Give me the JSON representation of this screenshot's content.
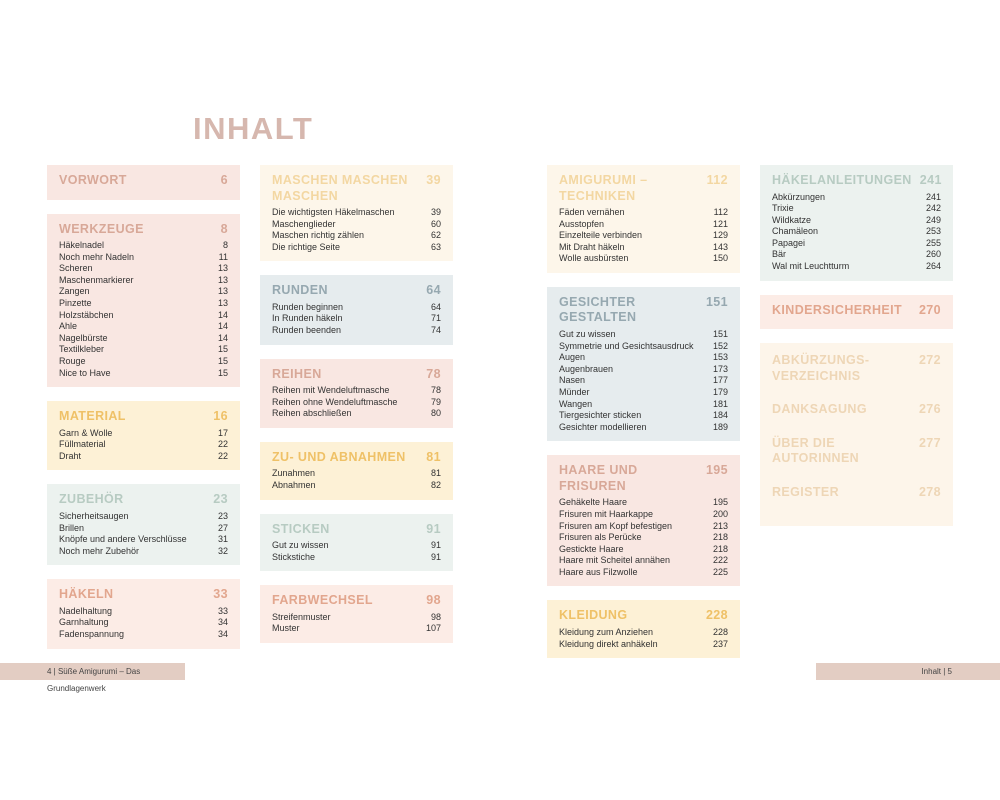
{
  "page_title": "INHALT",
  "columns": [
    [
      {
        "title": "VORWORT",
        "page": "6",
        "color": "pink",
        "entries": []
      },
      {
        "title": "WERKZEUGE",
        "page": "8",
        "color": "pink",
        "entries": [
          {
            "label": "Häkelnadel",
            "page": "8"
          },
          {
            "label": "Noch mehr Nadeln",
            "page": "11"
          },
          {
            "label": "Scheren",
            "page": "13"
          },
          {
            "label": "Maschenmarkierer",
            "page": "13"
          },
          {
            "label": "Zangen",
            "page": "13"
          },
          {
            "label": "Pinzette",
            "page": "13"
          },
          {
            "label": "Holzstäbchen",
            "page": "14"
          },
          {
            "label": "Ahle",
            "page": "14"
          },
          {
            "label": "Nagelbürste",
            "page": "14"
          },
          {
            "label": "Textilkleber",
            "page": "15"
          },
          {
            "label": "Rouge",
            "page": "15"
          },
          {
            "label": "Nice to Have",
            "page": "15"
          }
        ]
      },
      {
        "title": "MATERIAL",
        "page": "16",
        "color": "yellow",
        "entries": [
          {
            "label": "Garn & Wolle",
            "page": "17"
          },
          {
            "label": "Füllmaterial",
            "page": "22"
          },
          {
            "label": "Draht",
            "page": "22"
          }
        ]
      },
      {
        "title": "ZUBEHÖR",
        "page": "23",
        "color": "mint",
        "entries": [
          {
            "label": "Sicherheitsaugen",
            "page": "23"
          },
          {
            "label": "Brillen",
            "page": "27"
          },
          {
            "label": "Knöpfe und andere Verschlüsse",
            "page": "31"
          },
          {
            "label": "Noch mehr Zubehör",
            "page": "32"
          }
        ]
      },
      {
        "title": "HÄKELN",
        "page": "33",
        "color": "peach",
        "entries": [
          {
            "label": "Nadelhaltung",
            "page": "33"
          },
          {
            "label": "Garnhaltung",
            "page": "34"
          },
          {
            "label": "Fadenspannung",
            "page": "34"
          }
        ]
      }
    ],
    [
      {
        "title": "MASCHEN MASCHEN\nMASCHEN",
        "page": "39",
        "color": "cream",
        "entries": [
          {
            "label": "Die wichtigsten Häkelmaschen",
            "page": "39"
          },
          {
            "label": "Maschenglieder",
            "page": "60"
          },
          {
            "label": "Maschen richtig zählen",
            "page": "62"
          },
          {
            "label": "Die richtige Seite",
            "page": "63"
          }
        ]
      },
      {
        "title": "RUNDEN",
        "page": "64",
        "color": "grey",
        "entries": [
          {
            "label": "Runden beginnen",
            "page": "64"
          },
          {
            "label": "In Runden häkeln",
            "page": "71"
          },
          {
            "label": "Runden beenden",
            "page": "74"
          }
        ]
      },
      {
        "title": "REIHEN",
        "page": "78",
        "color": "pink",
        "entries": [
          {
            "label": "Reihen mit Wendeluftmasche",
            "page": "78"
          },
          {
            "label": "Reihen ohne Wendeluftmasche",
            "page": "79"
          },
          {
            "label": "Reihen abschließen",
            "page": "80"
          }
        ]
      },
      {
        "title": "ZU- UND ABNAHMEN",
        "page": "81",
        "color": "yellow",
        "entries": [
          {
            "label": "Zunahmen",
            "page": "81"
          },
          {
            "label": "Abnahmen",
            "page": "82"
          }
        ]
      },
      {
        "title": "STICKEN",
        "page": "91",
        "color": "mint",
        "entries": [
          {
            "label": "Gut zu wissen",
            "page": "91"
          },
          {
            "label": "Stickstiche",
            "page": "91"
          }
        ]
      },
      {
        "title": "FARBWECHSEL",
        "page": "98",
        "color": "peach",
        "entries": [
          {
            "label": "Streifenmuster",
            "page": "98"
          },
          {
            "label": "Muster",
            "page": "107"
          }
        ]
      }
    ],
    [
      {
        "title": "AMIGURUMI –\nTECHNIKEN",
        "page": "112",
        "color": "cream",
        "entries": [
          {
            "label": "Fäden vernähen",
            "page": "112"
          },
          {
            "label": "Ausstopfen",
            "page": "121"
          },
          {
            "label": "Einzelteile verbinden",
            "page": "129"
          },
          {
            "label": "Mit Draht häkeln",
            "page": "143"
          },
          {
            "label": "Wolle ausbürsten",
            "page": "150"
          }
        ]
      },
      {
        "title": "GESICHTER GESTALTEN",
        "page": "151",
        "color": "grey",
        "entries": [
          {
            "label": "Gut zu wissen",
            "page": "151"
          },
          {
            "label": "Symmetrie und Gesichtsausdruck",
            "page": "152"
          },
          {
            "label": "Augen",
            "page": "153"
          },
          {
            "label": "Augenbrauen",
            "page": "173"
          },
          {
            "label": "Nasen",
            "page": "177"
          },
          {
            "label": "Münder",
            "page": "179"
          },
          {
            "label": "Wangen",
            "page": "181"
          },
          {
            "label": "Tiergesichter sticken",
            "page": "184"
          },
          {
            "label": "Gesichter modellieren",
            "page": "189"
          }
        ]
      },
      {
        "title": "HAARE UND FRISUREN",
        "page": "195",
        "color": "pink",
        "entries": [
          {
            "label": "Gehäkelte Haare",
            "page": "195"
          },
          {
            "label": "Frisuren mit Haarkappe",
            "page": "200"
          },
          {
            "label": "Frisuren am Kopf befestigen",
            "page": "213"
          },
          {
            "label": "Frisuren als Perücke",
            "page": "218"
          },
          {
            "label": "Gestickte Haare",
            "page": "218"
          },
          {
            "label": "Haare mit Scheitel annähen",
            "page": "222"
          },
          {
            "label": "Haare aus Filzwolle",
            "page": "225"
          }
        ]
      },
      {
        "title": "KLEIDUNG",
        "page": "228",
        "color": "yellow",
        "entries": [
          {
            "label": "Kleidung zum Anziehen",
            "page": "228"
          },
          {
            "label": "Kleidung direkt anhäkeln",
            "page": "237"
          }
        ]
      }
    ],
    [
      {
        "title": "HÄKELANLEITUNGEN",
        "page": "241",
        "color": "mint",
        "entries": [
          {
            "label": "Abkürzungen",
            "page": "241"
          },
          {
            "label": "Trixie",
            "page": "242"
          },
          {
            "label": "Wildkatze",
            "page": "249"
          },
          {
            "label": "Chamäleon",
            "page": "253"
          },
          {
            "label": "Papagei",
            "page": "255"
          },
          {
            "label": "Bär",
            "page": "260"
          },
          {
            "label": "Wal mit Leuchtturm",
            "page": "264"
          }
        ]
      },
      {
        "title": "KINDERSICHERHEIT",
        "page": "270",
        "color": "peach",
        "entries": []
      }
    ]
  ],
  "pale_block": [
    {
      "title": "ABKÜRZUNGS-\nVERZEICHNIS",
      "page": "272"
    },
    {
      "title": "DANKSAGUNG",
      "page": "276"
    },
    {
      "title": "ÜBER DIE AUTORINNEN",
      "page": "277"
    },
    {
      "title": "REGISTER",
      "page": "278"
    }
  ],
  "footer": {
    "left": "4 | Süße Amigurumi – Das Grundlagenwerk",
    "right": "Inhalt | 5"
  }
}
